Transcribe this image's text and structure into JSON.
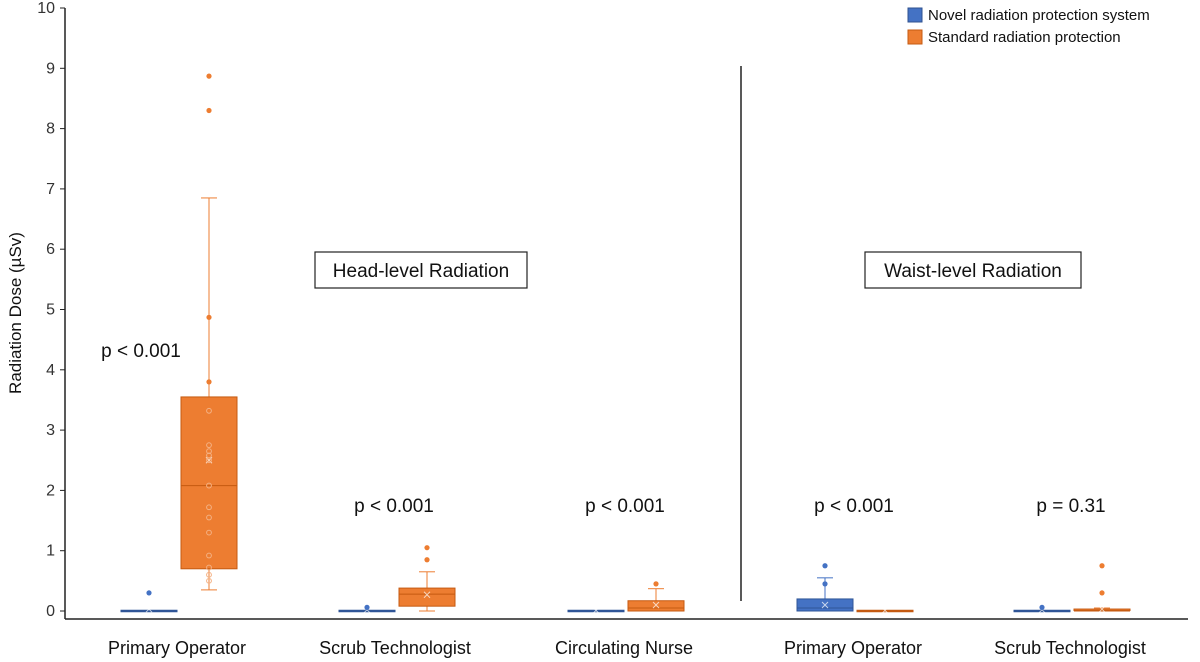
{
  "chart_data": {
    "type": "box",
    "ylabel": "Radiation Dose (µSv)",
    "ylim": [
      0,
      10
    ],
    "yticks": [
      "0",
      "1",
      "2",
      "3",
      "4",
      "5",
      "6",
      "7",
      "8",
      "9",
      "10"
    ],
    "legend": {
      "placement": "top-right",
      "entries": [
        {
          "name": "Novel radiation protection system",
          "color": "#4472C4"
        },
        {
          "name": "Standard radiation protection",
          "color": "#ED7D31"
        }
      ]
    },
    "panels": [
      {
        "label": "Head-level Radiation"
      },
      {
        "label": "Waist-level Radiation"
      }
    ],
    "categories": [
      {
        "label": "Primary Operator",
        "panel": 0,
        "pvalue": "p < 0.001"
      },
      {
        "label": "Scrub Technologist",
        "panel": 0,
        "pvalue": "p < 0.001"
      },
      {
        "label": "Circulating Nurse",
        "panel": 0,
        "pvalue": "p < 0.001"
      },
      {
        "label": "Primary Operator",
        "panel": 1,
        "pvalue": "p < 0.001"
      },
      {
        "label": "Scrub Technologist",
        "panel": 1,
        "pvalue": "p = 0.31"
      }
    ],
    "series": [
      {
        "name": "Novel radiation protection system",
        "color": "#4472C4",
        "boxes": [
          {
            "min": 0,
            "q1": 0,
            "median": 0,
            "q3": 0,
            "max": 0,
            "mean": 0.03,
            "outliers": [
              0.3
            ]
          },
          {
            "min": 0,
            "q1": 0,
            "median": 0,
            "q3": 0,
            "max": 0,
            "mean": 0.02,
            "outliers": [
              0.06
            ]
          },
          {
            "min": 0,
            "q1": 0,
            "median": 0,
            "q3": 0,
            "max": 0,
            "mean": 0.01,
            "outliers": []
          },
          {
            "min": 0,
            "q1": 0,
            "median": 0.05,
            "q3": 0.2,
            "max": 0.55,
            "mean": 0.1,
            "outliers": [
              0.75,
              0.45
            ]
          },
          {
            "min": 0,
            "q1": 0,
            "median": 0,
            "q3": 0,
            "max": 0,
            "mean": 0.02,
            "outliers": [
              0.06
            ]
          }
        ]
      },
      {
        "name": "Standard radiation protection",
        "color": "#ED7D31",
        "boxes": [
          {
            "min": 0.35,
            "q1": 0.7,
            "median": 2.08,
            "q3": 3.55,
            "max": 6.85,
            "mean": 2.5,
            "outliers": [
              3.8,
              4.87,
              8.3,
              8.87
            ]
          },
          {
            "min": 0,
            "q1": 0.08,
            "median": 0.28,
            "q3": 0.38,
            "max": 0.65,
            "mean": 0.27,
            "outliers": [
              0.85,
              1.05
            ]
          },
          {
            "min": 0,
            "q1": 0,
            "median": 0.05,
            "q3": 0.17,
            "max": 0.37,
            "mean": 0.1,
            "outliers": [
              0.45
            ]
          },
          {
            "min": 0,
            "q1": 0,
            "median": 0,
            "q3": 0,
            "max": 0,
            "mean": 0.01,
            "outliers": []
          },
          {
            "min": 0,
            "q1": 0,
            "median": 0,
            "q3": 0.02,
            "max": 0.05,
            "mean": 0.03,
            "outliers": [
              0.3,
              0.75
            ]
          }
        ]
      }
    ]
  }
}
